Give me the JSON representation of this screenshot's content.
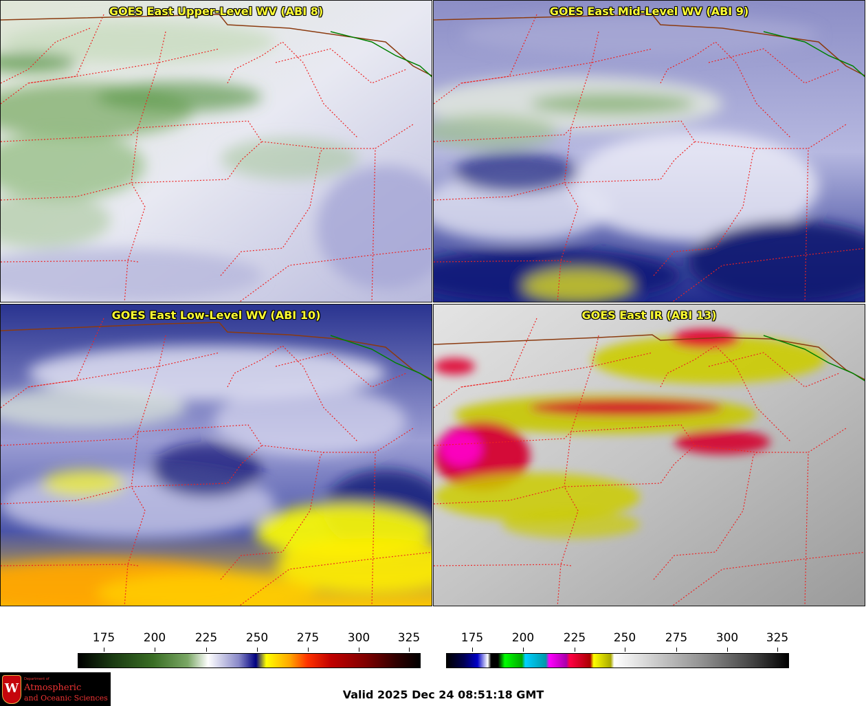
{
  "panels": [
    {
      "title": "GOES East Upper-Level WV (ABI 8)",
      "theme": "upper"
    },
    {
      "title": "GOES East Mid-Level WV (ABI 9)",
      "theme": "mid"
    },
    {
      "title": "GOES East Low-Level WV (ABI 10)",
      "theme": "low"
    },
    {
      "title": "GOES East IR (ABI 13)",
      "theme": "ir"
    }
  ],
  "colorbars": {
    "left": {
      "ticks": [
        "175",
        "200",
        "225",
        "250",
        "275",
        "300",
        "325"
      ]
    },
    "right": {
      "ticks": [
        "175",
        "200",
        "225",
        "250",
        "275",
        "300",
        "325"
      ]
    }
  },
  "logo": {
    "crest_letter": "W",
    "line1": "Department of",
    "line2": "Atmospheric",
    "line3": "and Oceanic Sciences"
  },
  "valid_time": "Valid 2025 Dec 24 08:51:18 GMT",
  "colors": {
    "state_borders": "#ee2222",
    "country_border": "#8b3a0f",
    "lake_border": "#008000",
    "title_text": "#ffff33"
  }
}
